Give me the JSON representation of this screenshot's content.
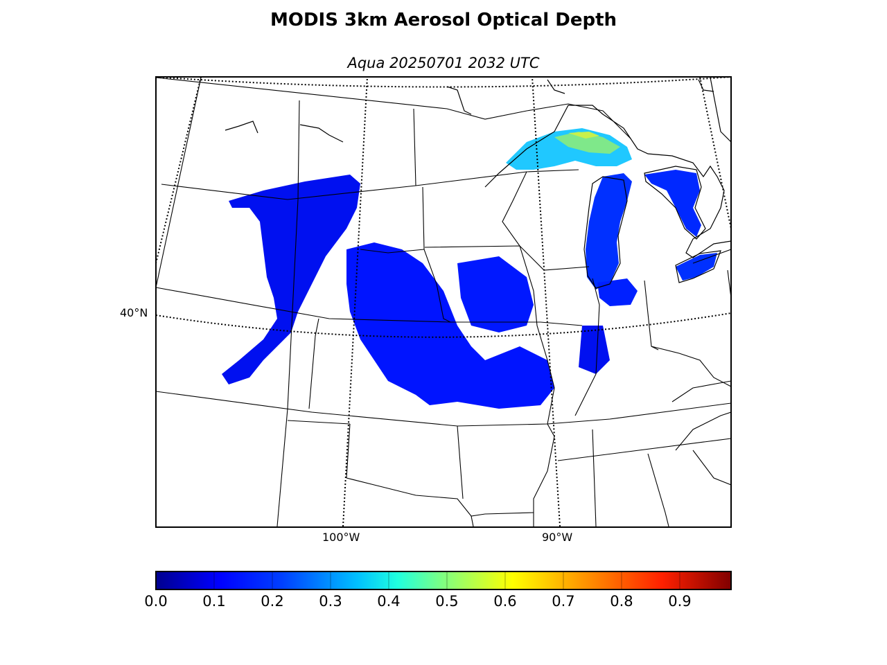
{
  "title": "MODIS 3km Aerosol Optical Depth",
  "subtitle": "Aqua 20250701 2032 UTC",
  "map": {
    "type": "choropleth-swath",
    "projection": "lambert-conformal",
    "coastline_color": "#000000",
    "graticule": {
      "lat_labels": [
        "40°N"
      ],
      "lon_labels": [
        "100°W",
        "90°W"
      ]
    }
  },
  "colorbar": {
    "colormap": "jet",
    "range": [
      0.0,
      1.0
    ],
    "ticks": [
      "0.0",
      "0.1",
      "0.2",
      "0.3",
      "0.4",
      "0.5",
      "0.6",
      "0.7",
      "0.8",
      "0.9"
    ],
    "colors": [
      "#00008f",
      "#0000ff",
      "#0080ff",
      "#00ffff",
      "#80ff80",
      "#ffff00",
      "#ff8000",
      "#ff0000",
      "#800000"
    ]
  },
  "chart_data": {
    "type": "heatmap",
    "title": "MODIS 3km Aerosol Optical Depth",
    "subtitle": "Aqua 20250701 2032 UTC",
    "value_range": [
      0.0,
      1.0
    ],
    "colorbar_ticks": [
      0.0,
      0.1,
      0.2,
      0.3,
      0.4,
      0.5,
      0.6,
      0.7,
      0.8,
      0.9
    ],
    "dominant_values": {
      "plains_swath": 0.1,
      "lake_michigan": 0.15,
      "lake_superior": 0.4
    }
  }
}
